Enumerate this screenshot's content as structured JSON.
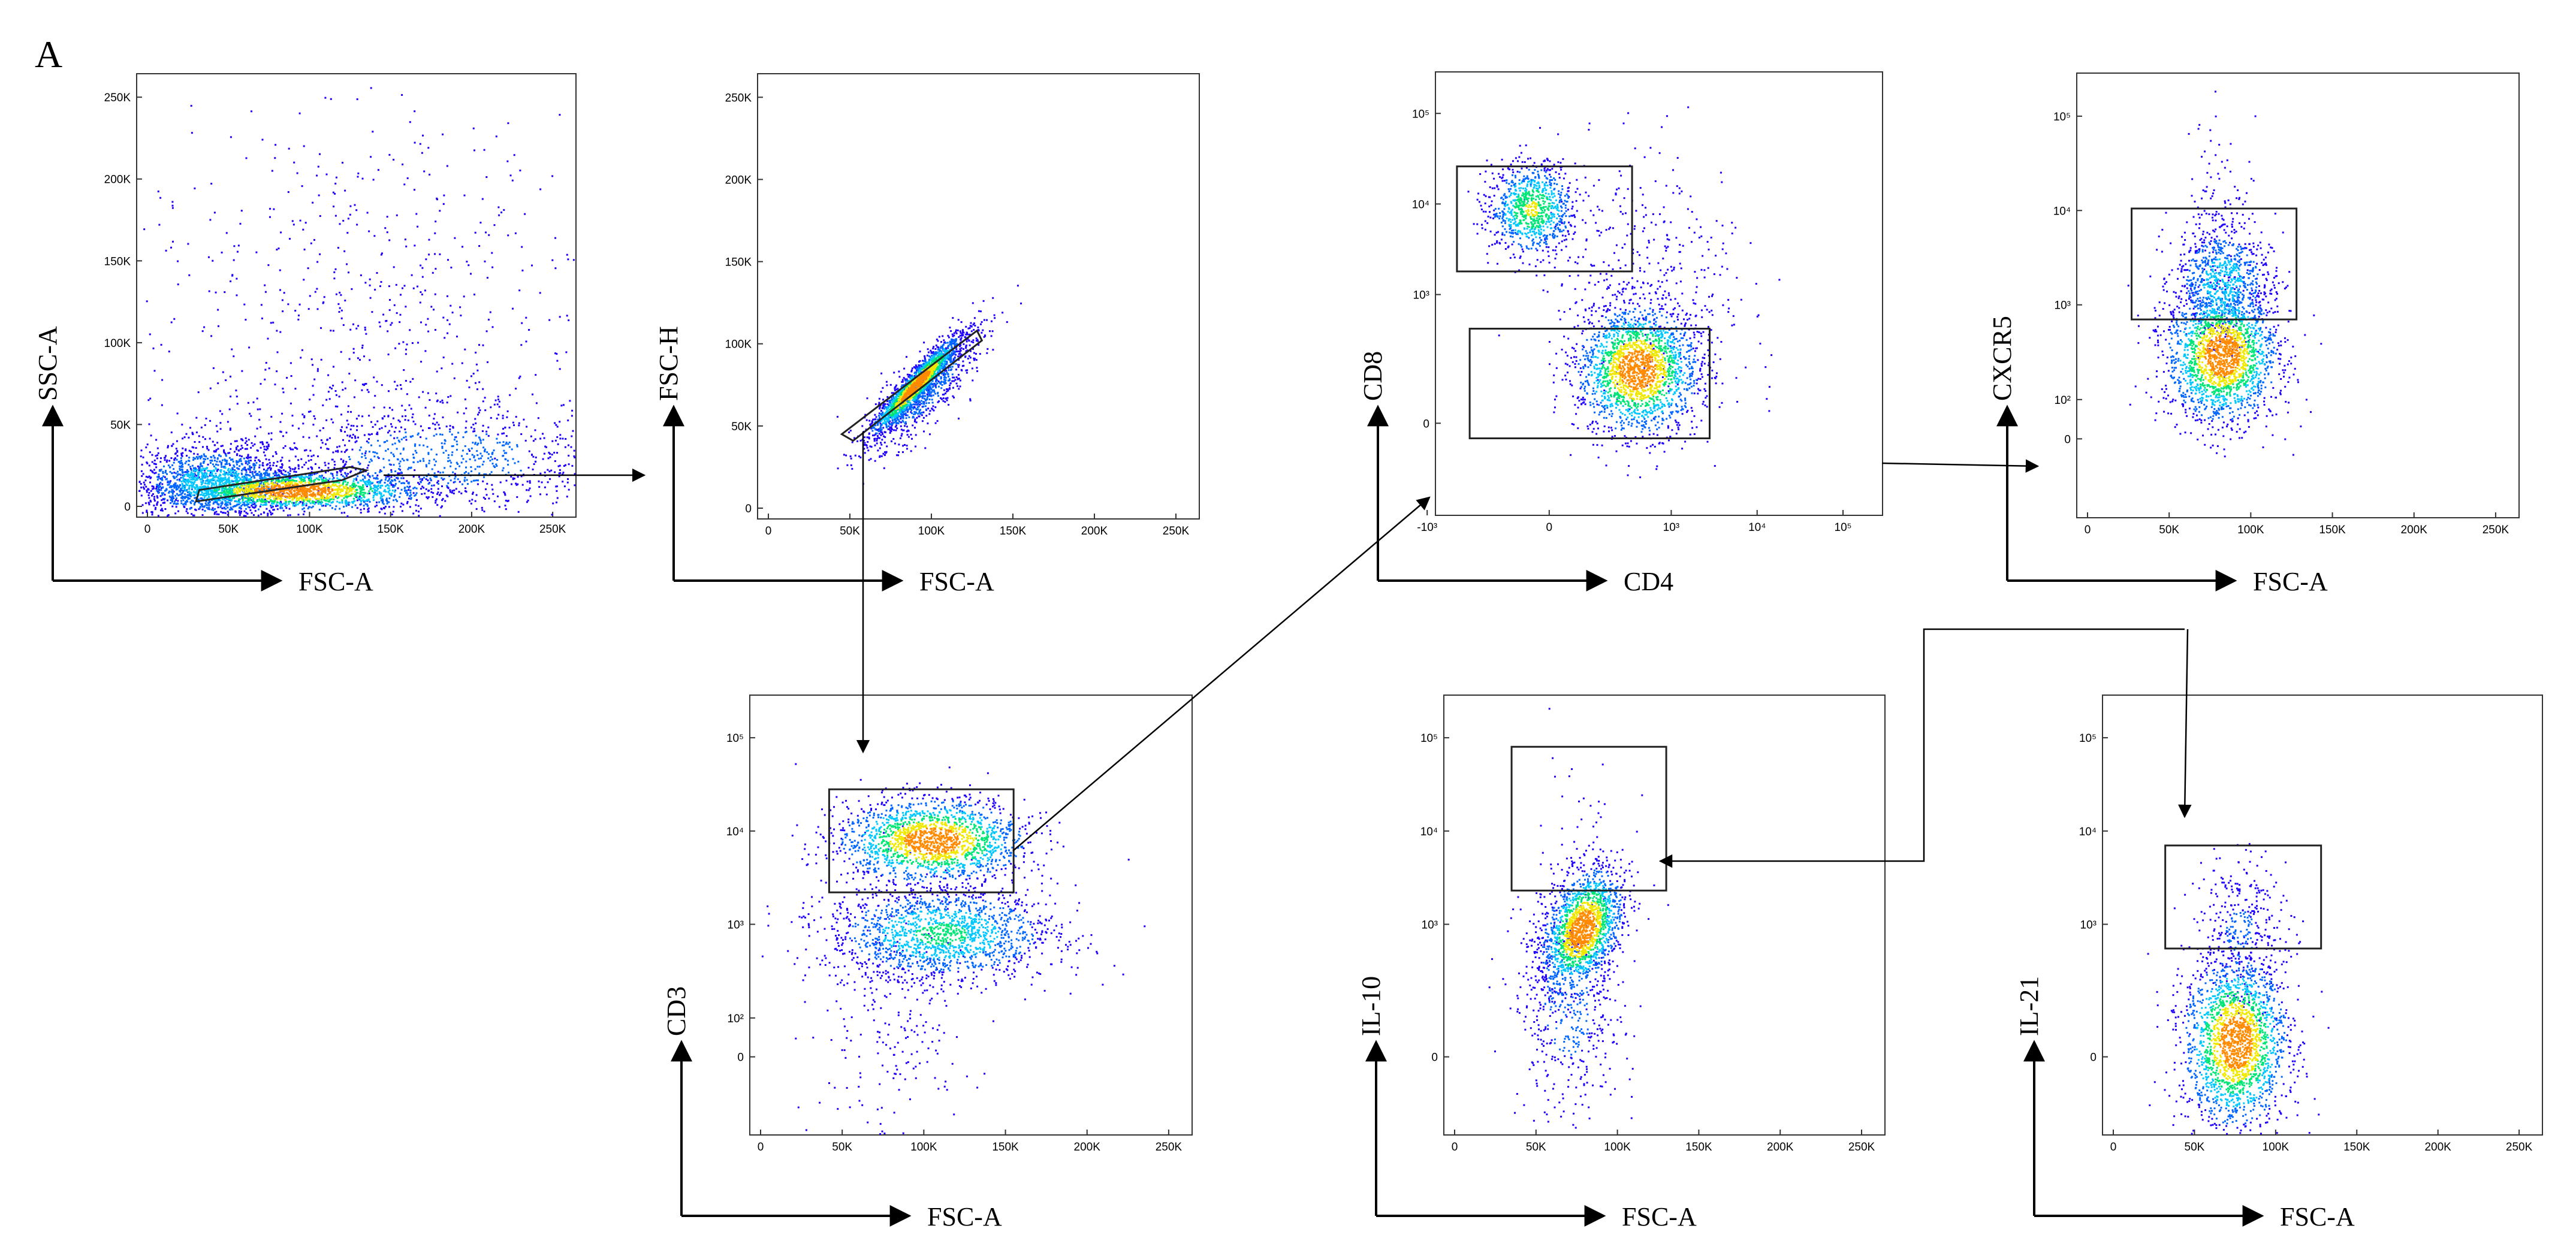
{
  "figure": {
    "panel_letter": "A"
  },
  "colors": {
    "density_ramp": [
      "#1f00ff",
      "#0066ff",
      "#00c8ff",
      "#00e676",
      "#f0e800",
      "#ff8a00",
      "#ff1800"
    ],
    "gate": "#222222",
    "arrow": "#000000"
  },
  "chart_data": [
    {
      "id": "ssc-fsc",
      "type": "scatter",
      "xlabel": "FSC-A",
      "ylabel": "SSC-A",
      "xscale": "linear",
      "yscale": "linear",
      "xlim": [
        0,
        262144
      ],
      "ylim": [
        0,
        262144
      ],
      "xticks": [
        {
          "v": 0,
          "label": "0"
        },
        {
          "v": 50000,
          "label": "50K"
        },
        {
          "v": 100000,
          "label": "100K"
        },
        {
          "v": 150000,
          "label": "150K"
        },
        {
          "v": 200000,
          "label": "200K"
        },
        {
          "v": 250000,
          "label": "250K"
        }
      ],
      "yticks": [
        {
          "v": 0,
          "label": "0"
        },
        {
          "v": 50000,
          "label": "50K"
        },
        {
          "v": 100000,
          "label": "100K"
        },
        {
          "v": 150000,
          "label": "150K"
        },
        {
          "v": 200000,
          "label": "200K"
        },
        {
          "v": 250000,
          "label": "250K"
        }
      ],
      "clusters": [
        {
          "cx": 90000,
          "cy": 10000,
          "sx": 40000,
          "sy": 6000,
          "n": 1800,
          "peak": 1.0
        },
        {
          "cx": 40000,
          "cy": 15000,
          "sx": 25000,
          "sy": 12000,
          "n": 1400,
          "peak": 0.45
        },
        {
          "cx": 180000,
          "cy": 30000,
          "sx": 60000,
          "sy": 18000,
          "n": 900,
          "peak": 0.25
        },
        {
          "cx": 130000,
          "cy": 110000,
          "sx": 70000,
          "sy": 70000,
          "n": 700,
          "peak": 0.08
        }
      ],
      "gates": [
        {
          "type": "polygon",
          "points": [
            [
              30000,
              3000
            ],
            [
              120000,
              16000
            ],
            [
              135000,
              22000
            ],
            [
              125000,
              24000
            ],
            [
              32000,
              10000
            ]
          ]
        }
      ]
    },
    {
      "id": "fsch-fsca",
      "type": "scatter",
      "xlabel": "FSC-A",
      "ylabel": "FSC-H",
      "xscale": "linear",
      "yscale": "linear",
      "xlim": [
        0,
        262144
      ],
      "ylim": [
        0,
        262144
      ],
      "xticks": [
        {
          "v": 0,
          "label": "0"
        },
        {
          "v": 50000,
          "label": "50K"
        },
        {
          "v": 100000,
          "label": "100K"
        },
        {
          "v": 150000,
          "label": "150K"
        },
        {
          "v": 200000,
          "label": "200K"
        },
        {
          "v": 250000,
          "label": "250K"
        }
      ],
      "yticks": [
        {
          "v": 0,
          "label": "0"
        },
        {
          "v": 50000,
          "label": "50K"
        },
        {
          "v": 100000,
          "label": "100K"
        },
        {
          "v": 150000,
          "label": "150K"
        },
        {
          "v": 200000,
          "label": "200K"
        },
        {
          "v": 250000,
          "label": "250K"
        }
      ],
      "clusters": [
        {
          "cx": 90000,
          "cy": 75000,
          "sx": 20000,
          "sy": 3500,
          "n": 1600,
          "peak": 1.0,
          "rot": 0.83
        },
        {
          "cx": 95000,
          "cy": 72000,
          "sx": 24000,
          "sy": 8000,
          "n": 800,
          "peak": 0.3,
          "rot": 0.83
        }
      ],
      "gates": [
        {
          "type": "polygon",
          "points": [
            [
              45000,
              45000
            ],
            [
              128000,
              108000
            ],
            [
              131000,
              102000
            ],
            [
              52000,
              41000
            ]
          ]
        }
      ]
    },
    {
      "id": "cd3-fsc",
      "type": "scatter",
      "xlabel": "FSC-A",
      "ylabel": "CD3",
      "xscale": "linear",
      "yscale": "biex",
      "xlim": [
        0,
        262144
      ],
      "ylim": [
        -200,
        262144
      ],
      "xticks": [
        {
          "v": 0,
          "label": "0"
        },
        {
          "v": 50000,
          "label": "50K"
        },
        {
          "v": 100000,
          "label": "100K"
        },
        {
          "v": 150000,
          "label": "150K"
        },
        {
          "v": 200000,
          "label": "200K"
        },
        {
          "v": 250000,
          "label": "250K"
        }
      ],
      "yticks": [
        {
          "v": 0,
          "label": "0"
        },
        {
          "v": 100,
          "label": "10²"
        },
        {
          "v": 1000,
          "label": "10³"
        },
        {
          "v": 10000,
          "label": "10⁴"
        },
        {
          "v": 100000,
          "label": "10⁵"
        }
      ],
      "clusters": [
        {
          "cx": 105000,
          "cy": 8000,
          "sx": 28000,
          "sy": 0.22,
          "n": 1800,
          "peak": 1.0
        },
        {
          "cx": 110000,
          "cy": 800,
          "sx": 35000,
          "sy": 0.25,
          "n": 1600,
          "peak": 0.55
        },
        {
          "cx": 80000,
          "cy": 150,
          "sx": 25000,
          "sy": 0.8,
          "n": 250,
          "peak": 0.1
        }
      ],
      "gates": [
        {
          "type": "rect",
          "x": [
            42000,
            155000
          ],
          "y": [
            2200,
            28000
          ]
        }
      ]
    },
    {
      "id": "cd8-cd4",
      "type": "scatter",
      "xlabel": "CD4",
      "ylabel": "CD8",
      "xscale": "biex",
      "yscale": "biex",
      "xlim": [
        -600,
        262144
      ],
      "ylim": [
        -300,
        262144
      ],
      "xticks": [
        {
          "v": -1000,
          "label": "-10³"
        },
        {
          "v": 0,
          "label": "0"
        },
        {
          "v": 1000,
          "label": "10³"
        },
        {
          "v": 10000,
          "label": "10⁴"
        },
        {
          "v": 100000,
          "label": "10⁵"
        }
      ],
      "yticks": [
        {
          "v": 0,
          "label": "0"
        },
        {
          "v": 1000,
          "label": "10³"
        },
        {
          "v": 10000,
          "label": "10⁴"
        },
        {
          "v": 100000,
          "label": "10⁵"
        }
      ],
      "clusters": [
        {
          "cx": 400,
          "cy": 150,
          "sx": 0.35,
          "sy": 0.35,
          "n": 2000,
          "peak": 1.0
        },
        {
          "cx": -50,
          "cy": 9000,
          "sx": 0.25,
          "sy": 0.25,
          "n": 900,
          "peak": 0.7
        },
        {
          "cx": 500,
          "cy": 1500,
          "sx": 0.6,
          "sy": 0.7,
          "n": 400,
          "peak": 0.1
        }
      ],
      "gates": [
        {
          "type": "rect",
          "x": [
            -320,
            2800
          ],
          "y": [
            -40,
            420
          ]
        },
        {
          "type": "rect",
          "x": [
            -450,
            350
          ],
          "y": [
            1800,
            26000
          ]
        }
      ]
    },
    {
      "id": "cxcr5-fsc",
      "type": "scatter",
      "xlabel": "FSC-A",
      "ylabel": "CXCR5",
      "xscale": "linear",
      "yscale": "biex",
      "xlim": [
        0,
        262144
      ],
      "ylim": [
        -200,
        262144
      ],
      "xticks": [
        {
          "v": 0,
          "label": "0"
        },
        {
          "v": 50000,
          "label": "50K"
        },
        {
          "v": 100000,
          "label": "100K"
        },
        {
          "v": 150000,
          "label": "150K"
        },
        {
          "v": 200000,
          "label": "200K"
        },
        {
          "v": 250000,
          "label": "250K"
        }
      ],
      "yticks": [
        {
          "v": 0,
          "label": "0"
        },
        {
          "v": 100,
          "label": "10²"
        },
        {
          "v": 1000,
          "label": "10³"
        },
        {
          "v": 10000,
          "label": "10⁴"
        },
        {
          "v": 100000,
          "label": "10⁵"
        }
      ],
      "clusters": [
        {
          "cx": 82000,
          "cy": 300,
          "sx": 17000,
          "sy": 0.35,
          "n": 2000,
          "peak": 1.0
        },
        {
          "cx": 82000,
          "cy": 1800,
          "sx": 15000,
          "sy": 0.3,
          "n": 800,
          "peak": 0.45
        },
        {
          "cx": 80000,
          "cy": 9000,
          "sx": 12000,
          "sy": 0.5,
          "n": 120,
          "peak": 0.05
        }
      ],
      "gates": [
        {
          "type": "rect",
          "x": [
            27000,
            128000
          ],
          "y": [
            700,
            10500
          ]
        }
      ]
    },
    {
      "id": "il10-fsc",
      "type": "scatter",
      "xlabel": "FSC-A",
      "ylabel": "IL-10",
      "xscale": "linear",
      "yscale": "biex",
      "xlim": [
        0,
        262144
      ],
      "ylim": [
        -200,
        262144
      ],
      "xticks": [
        {
          "v": 0,
          "label": "0"
        },
        {
          "v": 50000,
          "label": "50K"
        },
        {
          "v": 100000,
          "label": "100K"
        },
        {
          "v": 150000,
          "label": "150K"
        },
        {
          "v": 200000,
          "label": "200K"
        },
        {
          "v": 250000,
          "label": "250K"
        }
      ],
      "yticks": [
        {
          "v": 0,
          "label": "0"
        },
        {
          "v": 1000,
          "label": "10³"
        },
        {
          "v": 10000,
          "label": "10⁴"
        },
        {
          "v": 100000,
          "label": "10⁵"
        }
      ],
      "clusters": [
        {
          "cx": 78000,
          "cy": 900,
          "sx": 14000,
          "sy": 0.3,
          "n": 1700,
          "peak": 1.0,
          "rot": 0.5
        },
        {
          "cx": 70000,
          "cy": 150,
          "sx": 16000,
          "sy": 0.6,
          "n": 500,
          "peak": 0.25
        },
        {
          "cx": 80000,
          "cy": 8000,
          "sx": 20000,
          "sy": 0.6,
          "n": 50,
          "peak": 0.03
        }
      ],
      "gates": [
        {
          "type": "rect",
          "x": [
            35000,
            130000
          ],
          "y": [
            2300,
            80000
          ]
        }
      ]
    },
    {
      "id": "il21-fsc",
      "type": "scatter",
      "xlabel": "FSC-A",
      "ylabel": "IL-21",
      "xscale": "linear",
      "yscale": "biex",
      "xlim": [
        0,
        262144
      ],
      "ylim": [
        -200,
        262144
      ],
      "xticks": [
        {
          "v": 0,
          "label": "0"
        },
        {
          "v": 50000,
          "label": "50K"
        },
        {
          "v": 100000,
          "label": "100K"
        },
        {
          "v": 150000,
          "label": "150K"
        },
        {
          "v": 200000,
          "label": "200K"
        },
        {
          "v": 250000,
          "label": "250K"
        }
      ],
      "yticks": [
        {
          "v": 0,
          "label": "0"
        },
        {
          "v": 1000,
          "label": "10³"
        },
        {
          "v": 10000,
          "label": "10⁴"
        },
        {
          "v": 100000,
          "label": "10⁵"
        }
      ],
      "clusters": [
        {
          "cx": 75000,
          "cy": 40,
          "sx": 16000,
          "sy": 0.45,
          "n": 2000,
          "peak": 1.0
        },
        {
          "cx": 78000,
          "cy": 800,
          "sx": 14000,
          "sy": 0.4,
          "n": 350,
          "peak": 0.2
        }
      ],
      "gates": [
        {
          "type": "rect",
          "x": [
            32000,
            128000
          ],
          "y": [
            550,
            7000
          ]
        }
      ]
    }
  ]
}
